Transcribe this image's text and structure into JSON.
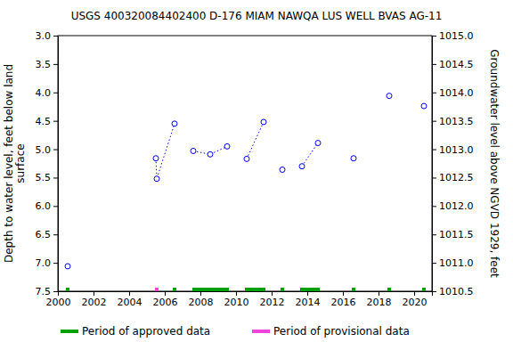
{
  "chart_data": {
    "type": "line",
    "title": "USGS 400320084402400 D-176 MIAM NAWQA LUS WELL BVAS AG-11",
    "ylabel": [
      "Depth to water level, feet below land",
      "surface"
    ],
    "y2label": "Groundwater level above NGVD 1929, feet",
    "xlim": [
      2000,
      2021
    ],
    "xticks": [
      2000,
      2002,
      2004,
      2006,
      2008,
      2010,
      2012,
      2014,
      2016,
      2018,
      2020
    ],
    "ylim": [
      7.5,
      3.0
    ],
    "yticks": [
      {
        "value": 3.0,
        "label": "3.0"
      },
      {
        "value": 3.5,
        "label": "3.5"
      },
      {
        "value": 4.0,
        "label": "4.0"
      },
      {
        "value": 4.5,
        "label": "4.5"
      },
      {
        "value": 5.0,
        "label": "5.0"
      },
      {
        "value": 5.5,
        "label": "5.5"
      },
      {
        "value": 6.0,
        "label": "6.0"
      },
      {
        "value": 6.5,
        "label": "6.5"
      },
      {
        "value": 7.0,
        "label": "7.0"
      },
      {
        "value": 7.5,
        "label": "7.5"
      }
    ],
    "y2lim": [
      1010.5,
      1015.0
    ],
    "y2ticks": [
      {
        "value": 1010.5,
        "label": "1010.5"
      },
      {
        "value": 1011.0,
        "label": "1011.0"
      },
      {
        "value": 1011.5,
        "label": "1011.5"
      },
      {
        "value": 1012.0,
        "label": "1012.0"
      },
      {
        "value": 1012.5,
        "label": "1012.5"
      },
      {
        "value": 1013.0,
        "label": "1013.0"
      },
      {
        "value": 1013.5,
        "label": "1013.5"
      },
      {
        "value": 1014.0,
        "label": "1014.0"
      },
      {
        "value": 1014.5,
        "label": "1014.5"
      },
      {
        "value": 1015.0,
        "label": "1015.0"
      }
    ],
    "grid": false,
    "legend": "bottom",
    "series": [
      {
        "type": "line",
        "color": "#0000ff",
        "marker": "circle",
        "line_style": "dotted",
        "x": [
          2000.55,
          null,
          2005.5,
          2005.55,
          2006.55,
          null,
          2007.6,
          2008.55,
          2009.5,
          null,
          2010.6,
          2011.55,
          null,
          2012.6,
          null,
          2013.7,
          2014.6,
          null,
          2016.6,
          null,
          2018.6,
          null,
          2020.55
        ],
        "values": [
          7.06,
          null,
          5.16,
          5.52,
          4.55,
          null,
          5.03,
          5.09,
          4.95,
          null,
          5.17,
          4.52,
          null,
          5.36,
          null,
          5.3,
          4.89,
          null,
          5.16,
          null,
          4.06,
          null,
          4.24
        ]
      },
      {
        "type": "period",
        "name": "Period of approved data",
        "color": "#00a000",
        "values": [
          [
            2000.45,
            2000.65
          ],
          [
            2006.45,
            2006.65
          ],
          [
            2007.55,
            2009.6
          ],
          [
            2010.5,
            2011.65
          ],
          [
            2012.5,
            2012.7
          ],
          [
            2013.6,
            2014.7
          ],
          [
            2016.5,
            2016.7
          ],
          [
            2018.5,
            2018.7
          ],
          [
            2020.45,
            2020.65
          ]
        ]
      },
      {
        "type": "period",
        "name": "Period of provisional data",
        "color": "#ee44dd",
        "values": [
          [
            2005.45,
            2005.65
          ]
        ]
      }
    ]
  }
}
